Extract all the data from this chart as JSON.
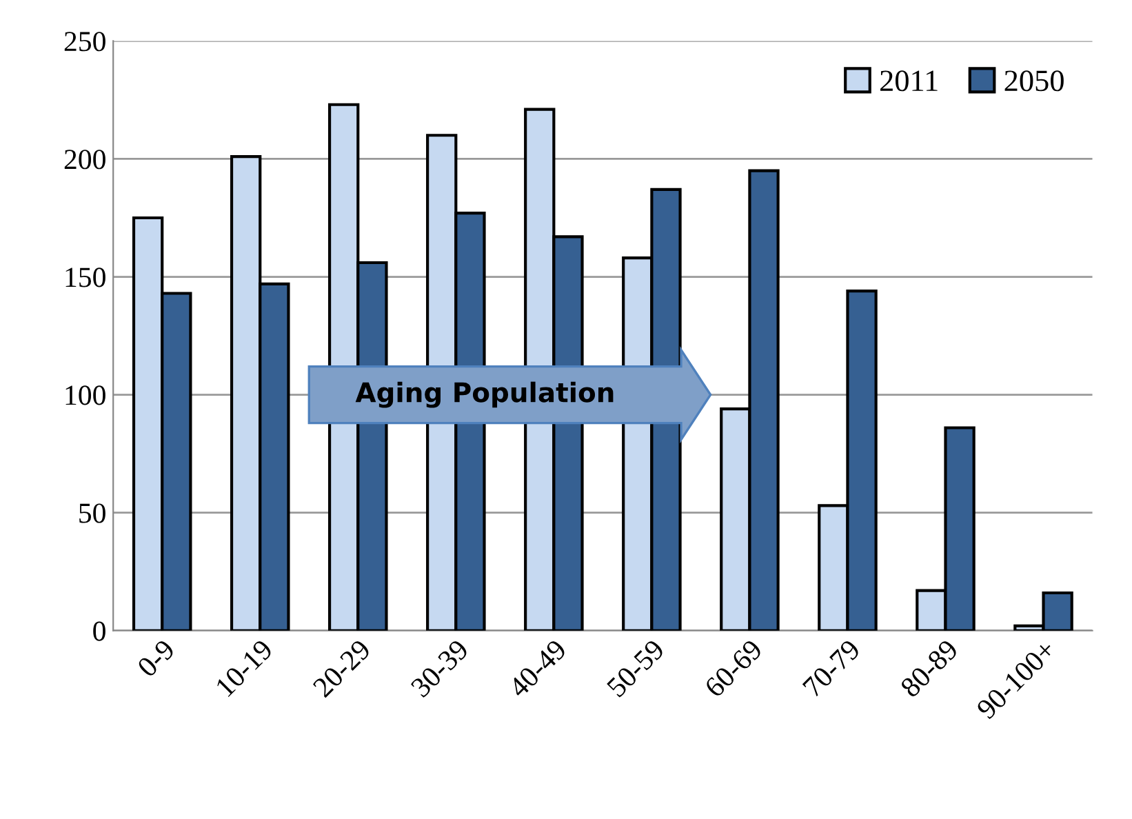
{
  "chart_data": {
    "type": "bar",
    "categories": [
      "0-9",
      "10-19",
      "20-29",
      "30-39",
      "40-49",
      "50-59",
      "60-69",
      "70-79",
      "80-89",
      "90-100+"
    ],
    "series": [
      {
        "name": "2011",
        "color": "#c6d9f1",
        "values": [
          175,
          201,
          223,
          210,
          221,
          158,
          94,
          53,
          17,
          2
        ]
      },
      {
        "name": "2050",
        "color": "#366092",
        "values": [
          143,
          147,
          156,
          177,
          167,
          187,
          195,
          144,
          86,
          16
        ]
      }
    ],
    "ylim": [
      0,
      250
    ],
    "yticks": [
      0,
      50,
      100,
      150,
      200,
      250
    ],
    "grid": "y",
    "legend": "top right",
    "annotations": [
      "Aging Population"
    ]
  }
}
